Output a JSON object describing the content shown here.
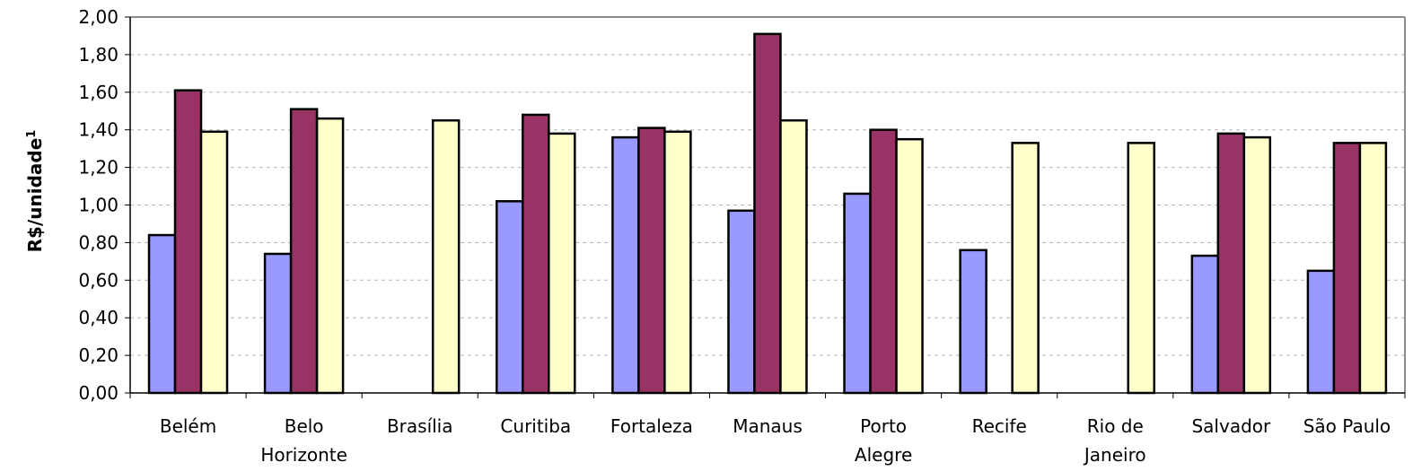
{
  "chart_data": {
    "type": "bar",
    "title": "",
    "xlabel": "",
    "ylabel": "R$/unidade",
    "ylabel_superscript": "1",
    "ylim": [
      0,
      2
    ],
    "yticks": [
      "0,00",
      "0,20",
      "0,40",
      "0,60",
      "0,80",
      "1,00",
      "1,20",
      "1,40",
      "1,60",
      "1,80",
      "2,00"
    ],
    "grid": true,
    "legend": "none",
    "categories": [
      [
        "Belém"
      ],
      [
        "Belo",
        "Horizonte"
      ],
      [
        "Brasília"
      ],
      [
        "Curitiba"
      ],
      [
        "Fortaleza"
      ],
      [
        "Manaus"
      ],
      [
        "Porto",
        "Alegre"
      ],
      [
        "Recife"
      ],
      [
        "Rio de",
        "Janeiro"
      ],
      [
        "Salvador"
      ],
      [
        "São Paulo"
      ]
    ],
    "series": [
      {
        "color": "#9999ff",
        "values": [
          0.84,
          0.74,
          null,
          1.02,
          1.36,
          0.97,
          1.06,
          0.76,
          null,
          0.73,
          0.65
        ]
      },
      {
        "color": "#993366",
        "values": [
          1.61,
          1.51,
          null,
          1.48,
          1.41,
          1.91,
          1.4,
          null,
          null,
          1.38,
          1.33
        ]
      },
      {
        "color": "#ffffcc",
        "values": [
          1.39,
          1.46,
          1.45,
          1.38,
          1.39,
          1.45,
          1.35,
          1.33,
          1.33,
          1.36,
          1.33
        ]
      }
    ]
  }
}
